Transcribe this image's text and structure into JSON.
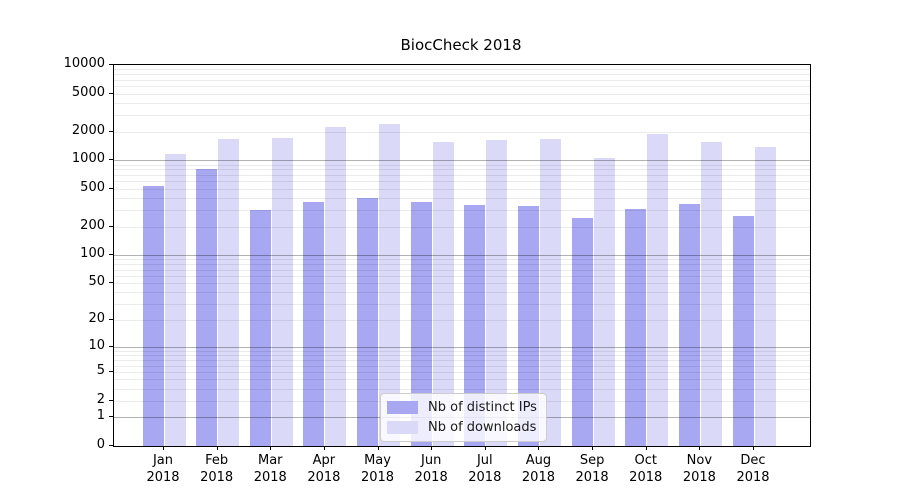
{
  "chart_data": {
    "type": "bar",
    "title": "BiocCheck 2018",
    "categories": [
      "Jan",
      "Feb",
      "Mar",
      "Apr",
      "May",
      "Jun",
      "Jul",
      "Aug",
      "Sep",
      "Oct",
      "Nov",
      "Dec"
    ],
    "year_label": "2018",
    "series": [
      {
        "name": "Nb of distinct IPs",
        "color": "#a7a7f2",
        "values": [
          530,
          800,
          300,
          365,
          400,
          365,
          340,
          330,
          245,
          305,
          350,
          260
        ]
      },
      {
        "name": "Nb of downloads",
        "color": "#dadaf8",
        "values": [
          1170,
          1670,
          1710,
          2220,
          2390,
          1540,
          1620,
          1670,
          1060,
          1890,
          1550,
          1390
        ]
      }
    ],
    "yscale": "log1p",
    "ylim": [
      0,
      10000
    ],
    "yticks": [
      0,
      1,
      2,
      5,
      10,
      20,
      50,
      100,
      200,
      500,
      1000,
      2000,
      5000,
      10000
    ],
    "grid": "major+minor horizontal",
    "legend_position": "lower-center",
    "xlabel": "",
    "ylabel": ""
  },
  "colors": {
    "background": "#ffffff",
    "spine": "#000000",
    "grid_major": "rgba(0,0,0,0.30)",
    "grid_minor": "rgba(0,0,0,0.08)"
  }
}
